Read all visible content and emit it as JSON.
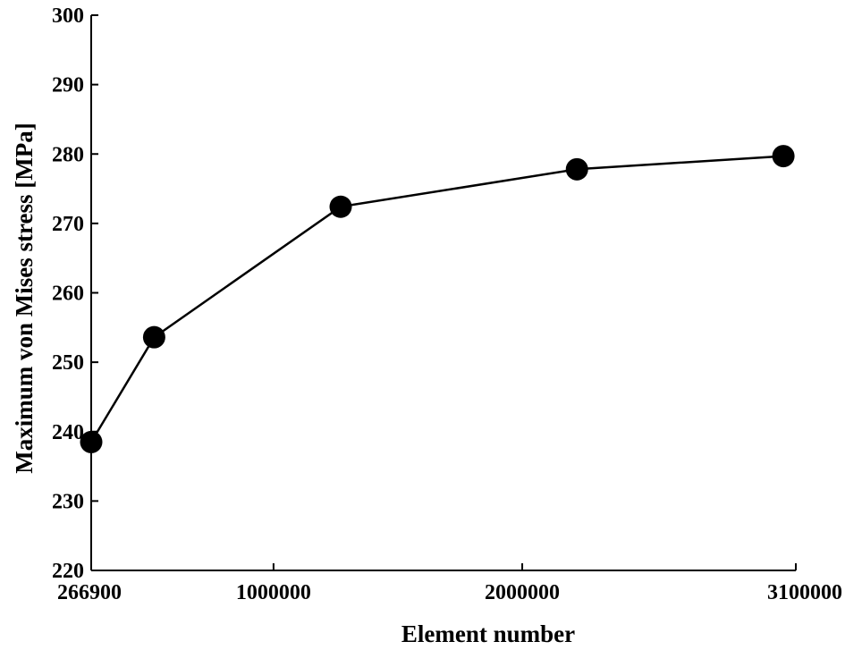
{
  "chart_data": {
    "type": "line",
    "title": "",
    "xlabel": "Element number",
    "ylabel": "Maximum von Mises stress [MPa]",
    "x_ticks": [
      266900,
      1000000,
      2000000,
      3100000
    ],
    "x_tick_labels": [
      "266900",
      "1000000",
      "2000000",
      "3100000"
    ],
    "xlim": [
      266900,
      3100000
    ],
    "y_ticks": [
      220,
      230,
      240,
      250,
      260,
      270,
      280,
      290,
      300
    ],
    "y_tick_labels": [
      "220",
      "230",
      "240",
      "250",
      "260",
      "270",
      "280",
      "290",
      "300"
    ],
    "ylim": [
      220,
      300
    ],
    "grid": false,
    "legend": false,
    "series": [
      {
        "x": [
          266900,
          520000,
          1270000,
          2220000,
          3050000
        ],
        "y": [
          238.5,
          253.6,
          272.4,
          277.8,
          279.7
        ],
        "marker": "circle",
        "color": "#000000"
      }
    ]
  }
}
